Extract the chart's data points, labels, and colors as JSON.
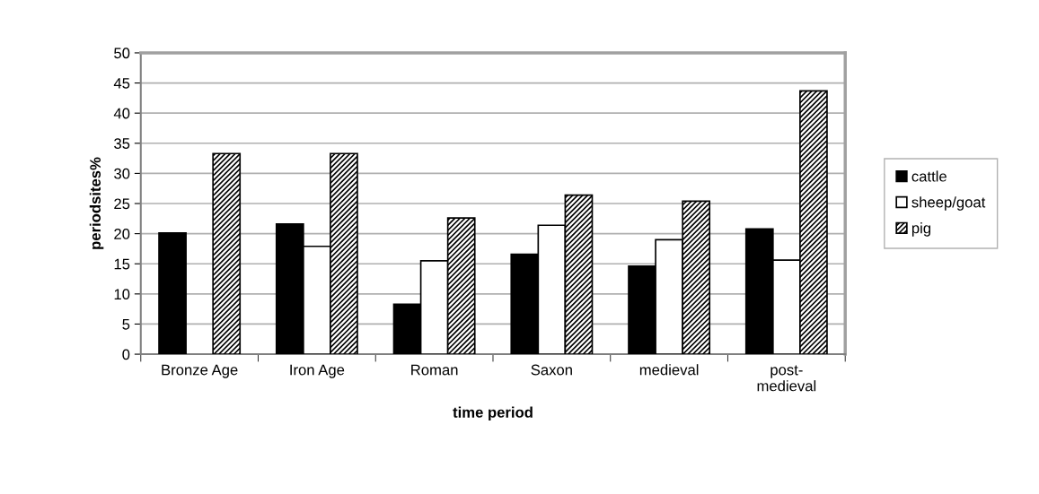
{
  "chart_data": {
    "type": "bar",
    "xlabel": "time period",
    "ylabel": "periodsites%",
    "categories": [
      "Bronze Age",
      "Iron Age",
      "Roman",
      "Saxon",
      "medieval",
      "post-medieval"
    ],
    "series": [
      {
        "name": "cattle",
        "color": "#000000",
        "values": [
          20.1,
          21.6,
          8.3,
          16.6,
          14.6,
          20.8
        ]
      },
      {
        "name": "sheep/goat",
        "color": "#ffffff",
        "values": [
          null,
          17.9,
          15.5,
          21.4,
          19.0,
          15.6
        ]
      },
      {
        "name": "pig",
        "color": "#000000",
        "values": [
          33.3,
          33.3,
          22.6,
          26.4,
          25.4,
          43.7
        ]
      }
    ],
    "ylim": [
      0,
      50
    ],
    "yticks": [
      0,
      5,
      10,
      15,
      20,
      25,
      30,
      35,
      40,
      45,
      50
    ],
    "grid": "y",
    "legend": "right"
  }
}
